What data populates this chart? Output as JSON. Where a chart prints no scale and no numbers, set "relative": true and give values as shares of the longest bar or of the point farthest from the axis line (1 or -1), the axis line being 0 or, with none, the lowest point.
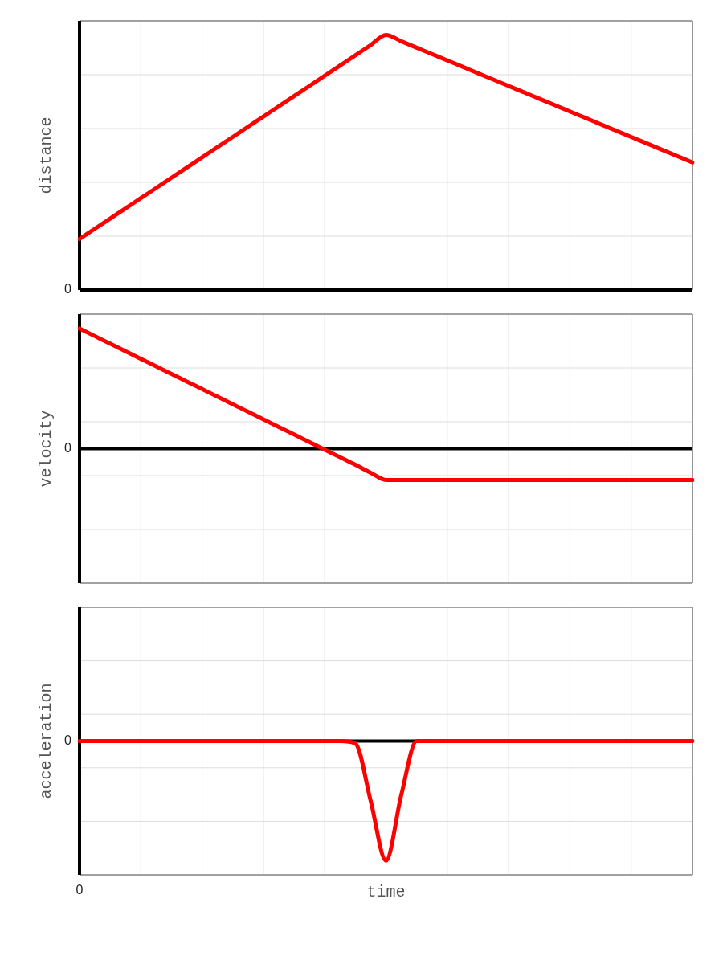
{
  "chart_data": [
    {
      "type": "line",
      "relative": true,
      "ylabel": "distance",
      "grid": true,
      "annotations": [
        "0"
      ],
      "categories": [
        null,
        null,
        null,
        null,
        null,
        null,
        null,
        null,
        null,
        null,
        null,
        null,
        null,
        null,
        null,
        null,
        null,
        null,
        null,
        null,
        null,
        null,
        null,
        null,
        null,
        null,
        null,
        null,
        null,
        null,
        null,
        null,
        null,
        null,
        null,
        null,
        null,
        null,
        null,
        null,
        null
      ],
      "series": [
        {
          "color": "#ff0000",
          "values": [
            0.2,
            0.24,
            0.28,
            0.32,
            0.36,
            0.4,
            0.44,
            0.48,
            0.52,
            0.56,
            0.6,
            0.64,
            0.68,
            0.72,
            0.76,
            0.8,
            0.84,
            0.88,
            0.92,
            0.96,
            1,
            0.975,
            0.95,
            0.925,
            0.9,
            0.875,
            0.85,
            0.825,
            0.8,
            0.775,
            0.75,
            0.725,
            0.7,
            0.675,
            0.65,
            0.625,
            0.6,
            0.575,
            0.55,
            0.525,
            0.5
          ]
        }
      ]
    },
    {
      "type": "line",
      "relative": true,
      "ylabel": "velocity",
      "grid": true,
      "annotations": [
        "0"
      ],
      "categories": [
        null,
        null,
        null,
        null,
        null,
        null,
        null,
        null,
        null,
        null,
        null,
        null,
        null,
        null,
        null,
        null,
        null,
        null,
        null,
        null,
        null,
        null,
        null,
        null,
        null,
        null,
        null,
        null,
        null,
        null,
        null,
        null,
        null,
        null,
        null,
        null,
        null,
        null,
        null,
        null,
        null
      ],
      "series": [
        {
          "color": "#ff0000",
          "values": [
            1,
            0.937,
            0.874,
            0.811,
            0.748,
            0.685,
            0.622,
            0.559,
            0.496,
            0.433,
            0.37,
            0.307,
            0.244,
            0.181,
            0.118,
            0.055,
            -0.008,
            -0.071,
            -0.134,
            -0.2,
            -0.26,
            -0.26,
            -0.26,
            -0.26,
            -0.26,
            -0.26,
            -0.26,
            -0.26,
            -0.26,
            -0.26,
            -0.26,
            -0.26,
            -0.26,
            -0.26,
            -0.26,
            -0.26,
            -0.26,
            -0.26,
            -0.26,
            -0.26,
            -0.26
          ]
        }
      ]
    },
    {
      "type": "line",
      "relative": true,
      "ylabel": "acceleration",
      "xlabel": "time",
      "grid": true,
      "annotations": [
        "0",
        "0"
      ],
      "categories": [
        null,
        null,
        null,
        null,
        null,
        null,
        null,
        null,
        null,
        null,
        null,
        null,
        null,
        null,
        null,
        null,
        null,
        null,
        null,
        null,
        null,
        null,
        null,
        null,
        null,
        null,
        null,
        null,
        null,
        null,
        null,
        null,
        null,
        null,
        null,
        null,
        null,
        null,
        null,
        null,
        null
      ],
      "series": [
        {
          "color": "#ff0000",
          "values": [
            0,
            0,
            0,
            0,
            0,
            0,
            0,
            0,
            0,
            0,
            0,
            0,
            0,
            0,
            0,
            0,
            0,
            0,
            -0.02,
            -0.5,
            -1,
            -0.45,
            0,
            0,
            0,
            0,
            0,
            0,
            0,
            0,
            0,
            0,
            0,
            0,
            0,
            0,
            0,
            0,
            0,
            0,
            0
          ]
        }
      ]
    }
  ]
}
